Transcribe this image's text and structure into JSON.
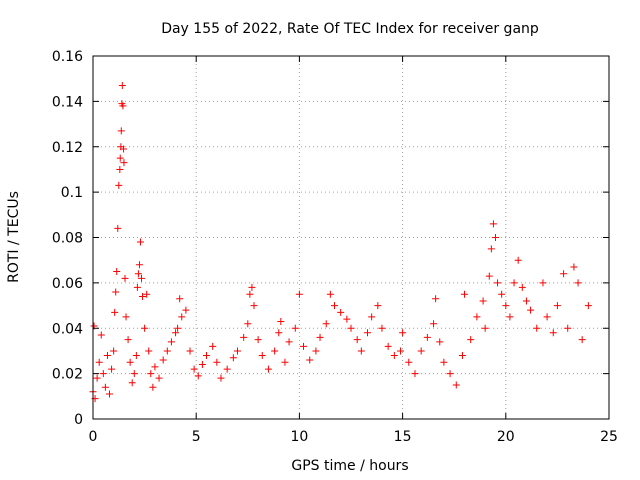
{
  "colors": {
    "series": "#ff0000",
    "grid": "#a0a0a0",
    "axis": "#000000"
  },
  "chart_data": {
    "type": "scatter",
    "title": "Day 155 of 2022, Rate Of TEC Index for receiver ganp",
    "xlabel": "GPS time / hours",
    "ylabel": "ROTI / TECUs",
    "xlim": [
      0,
      25
    ],
    "ylim": [
      0,
      0.16
    ],
    "x_ticks": [
      0,
      5,
      10,
      15,
      20,
      25
    ],
    "x_tick_labels": [
      "0",
      "5",
      "10",
      "15",
      "20",
      "25"
    ],
    "y_ticks": [
      0,
      0.02,
      0.04,
      0.06,
      0.08,
      0.1,
      0.12,
      0.14,
      0.16
    ],
    "y_tick_labels": [
      "0",
      "0.02",
      "0.04",
      "0.06",
      "0.08",
      "0.1",
      "0.12",
      "0.14",
      "0.16"
    ],
    "grid": true,
    "marker": "+",
    "series": [
      {
        "name": "ROTI",
        "points": [
          [
            0.0,
            0.012
          ],
          [
            0.05,
            0.041
          ],
          [
            0.1,
            0.009
          ],
          [
            0.2,
            0.018
          ],
          [
            0.3,
            0.025
          ],
          [
            0.4,
            0.037
          ],
          [
            0.5,
            0.02
          ],
          [
            0.6,
            0.014
          ],
          [
            0.7,
            0.028
          ],
          [
            0.8,
            0.011
          ],
          [
            0.9,
            0.022
          ],
          [
            1.0,
            0.03
          ],
          [
            1.05,
            0.047
          ],
          [
            1.1,
            0.056
          ],
          [
            1.15,
            0.065
          ],
          [
            1.2,
            0.084
          ],
          [
            1.25,
            0.103
          ],
          [
            1.3,
            0.11
          ],
          [
            1.32,
            0.115
          ],
          [
            1.35,
            0.12
          ],
          [
            1.37,
            0.127
          ],
          [
            1.4,
            0.139
          ],
          [
            1.42,
            0.147
          ],
          [
            1.45,
            0.138
          ],
          [
            1.48,
            0.119
          ],
          [
            1.5,
            0.113
          ],
          [
            1.55,
            0.062
          ],
          [
            1.6,
            0.045
          ],
          [
            1.7,
            0.035
          ],
          [
            1.8,
            0.025
          ],
          [
            1.9,
            0.016
          ],
          [
            2.0,
            0.02
          ],
          [
            2.1,
            0.028
          ],
          [
            2.15,
            0.058
          ],
          [
            2.2,
            0.064
          ],
          [
            2.25,
            0.068
          ],
          [
            2.3,
            0.078
          ],
          [
            2.35,
            0.062
          ],
          [
            2.4,
            0.054
          ],
          [
            2.5,
            0.04
          ],
          [
            2.6,
            0.055
          ],
          [
            2.7,
            0.03
          ],
          [
            2.8,
            0.02
          ],
          [
            2.9,
            0.014
          ],
          [
            3.0,
            0.023
          ],
          [
            3.2,
            0.018
          ],
          [
            3.4,
            0.026
          ],
          [
            3.6,
            0.03
          ],
          [
            3.8,
            0.034
          ],
          [
            4.0,
            0.038
          ],
          [
            4.1,
            0.04
          ],
          [
            4.2,
            0.053
          ],
          [
            4.3,
            0.045
          ],
          [
            4.5,
            0.048
          ],
          [
            4.7,
            0.03
          ],
          [
            4.9,
            0.022
          ],
          [
            5.1,
            0.019
          ],
          [
            5.3,
            0.024
          ],
          [
            5.5,
            0.028
          ],
          [
            5.8,
            0.032
          ],
          [
            6.0,
            0.025
          ],
          [
            6.2,
            0.018
          ],
          [
            6.5,
            0.022
          ],
          [
            6.8,
            0.027
          ],
          [
            7.0,
            0.03
          ],
          [
            7.3,
            0.036
          ],
          [
            7.5,
            0.042
          ],
          [
            7.6,
            0.055
          ],
          [
            7.7,
            0.058
          ],
          [
            7.8,
            0.05
          ],
          [
            8.0,
            0.035
          ],
          [
            8.2,
            0.028
          ],
          [
            8.5,
            0.022
          ],
          [
            8.8,
            0.03
          ],
          [
            9.0,
            0.038
          ],
          [
            9.1,
            0.043
          ],
          [
            9.3,
            0.025
          ],
          [
            9.5,
            0.034
          ],
          [
            9.8,
            0.04
          ],
          [
            10.0,
            0.055
          ],
          [
            10.2,
            0.032
          ],
          [
            10.5,
            0.026
          ],
          [
            10.8,
            0.03
          ],
          [
            11.0,
            0.036
          ],
          [
            11.3,
            0.042
          ],
          [
            11.5,
            0.055
          ],
          [
            11.7,
            0.05
          ],
          [
            12.0,
            0.047
          ],
          [
            12.3,
            0.044
          ],
          [
            12.5,
            0.04
          ],
          [
            12.8,
            0.035
          ],
          [
            13.0,
            0.03
          ],
          [
            13.3,
            0.038
          ],
          [
            13.5,
            0.045
          ],
          [
            13.8,
            0.05
          ],
          [
            14.0,
            0.04
          ],
          [
            14.3,
            0.032
          ],
          [
            14.6,
            0.028
          ],
          [
            14.9,
            0.03
          ],
          [
            15.0,
            0.038
          ],
          [
            15.3,
            0.025
          ],
          [
            15.6,
            0.02
          ],
          [
            15.9,
            0.03
          ],
          [
            16.2,
            0.036
          ],
          [
            16.5,
            0.042
          ],
          [
            16.6,
            0.053
          ],
          [
            16.8,
            0.034
          ],
          [
            17.0,
            0.025
          ],
          [
            17.3,
            0.02
          ],
          [
            17.6,
            0.015
          ],
          [
            17.9,
            0.028
          ],
          [
            18.0,
            0.055
          ],
          [
            18.3,
            0.035
          ],
          [
            18.6,
            0.045
          ],
          [
            18.9,
            0.052
          ],
          [
            19.0,
            0.04
          ],
          [
            19.2,
            0.063
          ],
          [
            19.3,
            0.075
          ],
          [
            19.4,
            0.086
          ],
          [
            19.5,
            0.08
          ],
          [
            19.6,
            0.06
          ],
          [
            19.8,
            0.055
          ],
          [
            20.0,
            0.05
          ],
          [
            20.2,
            0.045
          ],
          [
            20.4,
            0.06
          ],
          [
            20.6,
            0.07
          ],
          [
            20.8,
            0.058
          ],
          [
            21.0,
            0.052
          ],
          [
            21.2,
            0.048
          ],
          [
            21.5,
            0.04
          ],
          [
            21.8,
            0.06
          ],
          [
            22.0,
            0.045
          ],
          [
            22.3,
            0.038
          ],
          [
            22.5,
            0.05
          ],
          [
            22.8,
            0.064
          ],
          [
            23.0,
            0.04
          ],
          [
            23.3,
            0.067
          ],
          [
            23.5,
            0.06
          ],
          [
            23.7,
            0.035
          ],
          [
            24.0,
            0.05
          ]
        ]
      }
    ]
  }
}
